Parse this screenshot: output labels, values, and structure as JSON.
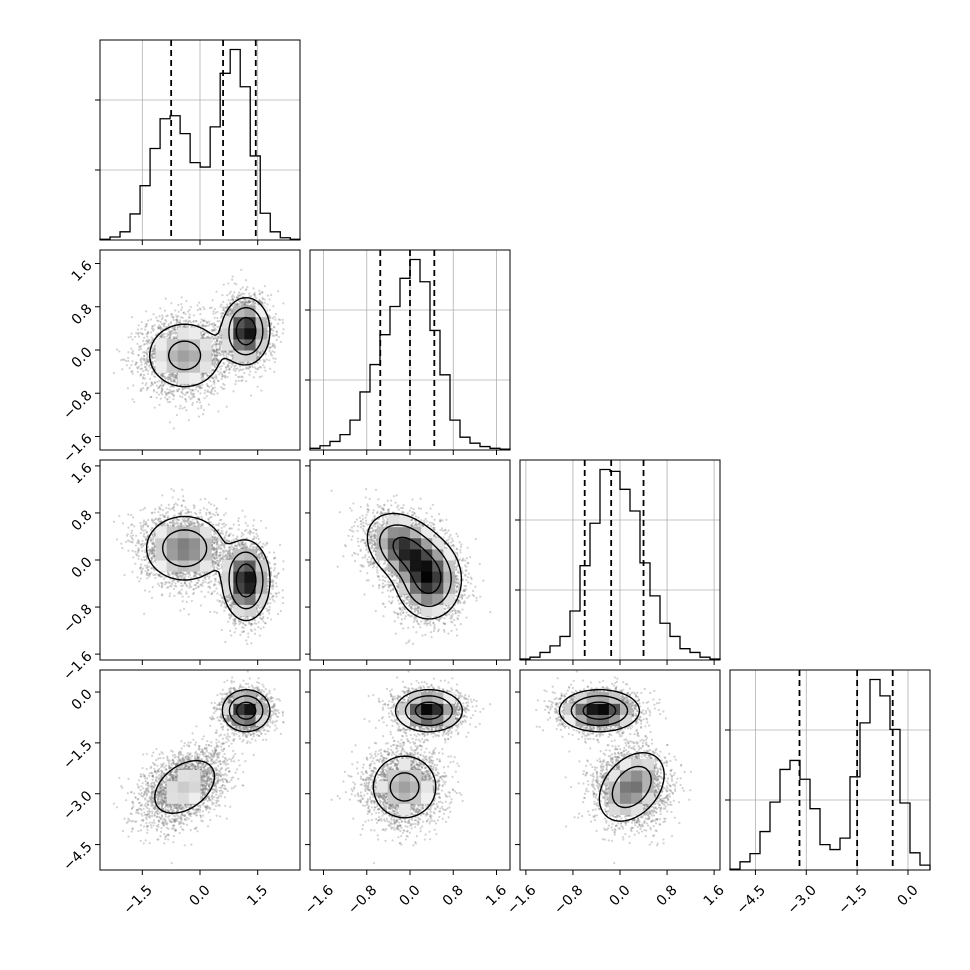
{
  "chart_data": {
    "type": "corner",
    "grid": true,
    "style": {
      "stroke": "#000000",
      "grid": "#b0b0b0",
      "point": "#7f7f7f",
      "density_light": "#f2f2f2",
      "density_dark": "#000000"
    },
    "parameters": [
      {
        "index": 0,
        "range": [
          -2.6,
          2.6
        ],
        "ticks": [
          -1.5,
          0.0,
          1.5
        ],
        "tick_labels": [
          "−1.5",
          "0.0",
          "1.5"
        ],
        "quantiles": [
          -0.75,
          0.6,
          1.45
        ],
        "hist_edges_start": -2.6,
        "hist_bin_width": 0.2604,
        "hist_counts": [
          1,
          4,
          11,
          35,
          73,
          123,
          163,
          167,
          143,
          104,
          98,
          152,
          224,
          256,
          206,
          113,
          36,
          11,
          3,
          1
        ]
      },
      {
        "index": 1,
        "range": [
          -1.85,
          1.85
        ],
        "ticks": [
          -1.6,
          -0.8,
          0.0,
          0.8,
          1.6
        ],
        "tick_labels": [
          "−1.6",
          "−0.8",
          "0.0",
          "0.8",
          "1.6"
        ],
        "quantiles": [
          -0.55,
          0.0,
          0.45
        ],
        "hist_edges_start": -1.85,
        "hist_bin_width": 0.185,
        "hist_counts": [
          2,
          5,
          10,
          18,
          35,
          68,
          100,
          135,
          168,
          201,
          223,
          197,
          140,
          88,
          35,
          15,
          8,
          4,
          2,
          1
        ]
      },
      {
        "index": 2,
        "range": [
          -1.7,
          1.7
        ],
        "ticks": [
          -1.6,
          -0.8,
          0.0,
          0.8,
          1.6
        ],
        "tick_labels": [
          "−1.6",
          "−0.8",
          "0.0",
          "0.8",
          "1.6"
        ],
        "quantiles": [
          -0.6,
          -0.15,
          0.4
        ],
        "hist_edges_start": -1.7,
        "hist_bin_width": 0.17,
        "hist_counts": [
          1,
          3,
          8,
          15,
          25,
          52,
          100,
          145,
          202,
          200,
          181,
          158,
          103,
          68,
          39,
          25,
          12,
          8,
          3,
          1
        ]
      },
      {
        "index": 3,
        "range": [
          -5.25,
          0.65
        ],
        "ticks": [
          -4.5,
          -3.0,
          -1.5,
          0.0
        ],
        "tick_labels": [
          "−4.5",
          "−3.0",
          "−1.5",
          "0.0"
        ],
        "quantiles": [
          -3.2,
          -1.5,
          -0.45
        ],
        "hist_edges_start": -5.25,
        "hist_bin_width": 0.295,
        "hist_counts": [
          1,
          10,
          20,
          47,
          83,
          123,
          134,
          111,
          75,
          31,
          25,
          39,
          114,
          180,
          233,
          213,
          172,
          82,
          21,
          6
        ]
      }
    ],
    "modes": [
      {
        "mean": [
          -0.4,
          -0.1,
          0.2,
          -2.8
        ],
        "std": [
          0.55,
          0.35,
          0.3,
          0.55
        ],
        "corr_pairs": [
          [
            2,
            3,
            0.35
          ],
          [
            0,
            3,
            0.4
          ],
          [
            1,
            2,
            -0.3
          ]
        ]
      },
      {
        "mean": [
          1.2,
          0.35,
          -0.35,
          -0.55
        ],
        "std": [
          0.3,
          0.3,
          0.33,
          0.3
        ],
        "corr_pairs": []
      }
    ]
  }
}
